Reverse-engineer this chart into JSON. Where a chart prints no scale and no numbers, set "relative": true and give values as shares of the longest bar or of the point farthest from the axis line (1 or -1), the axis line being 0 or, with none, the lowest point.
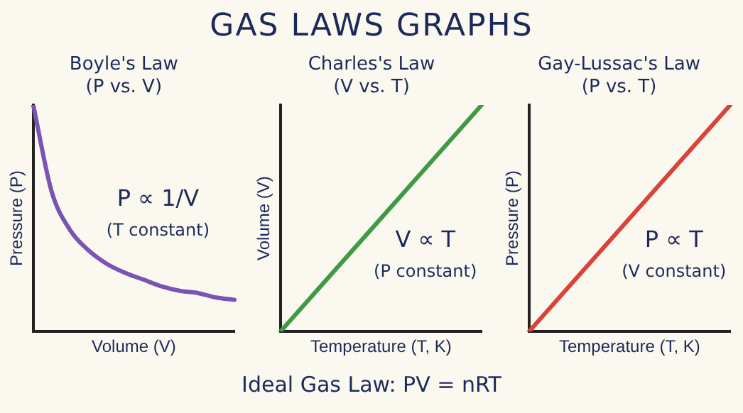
{
  "chart_data": [
    {
      "type": "other",
      "title": "GAS LAWS GRAPHS",
      "annotations": [
        "Ideal Gas Law:  PV = nRT"
      ]
    },
    {
      "type": "line",
      "title": "Boyle's Law",
      "subtitle": "(P vs. V)",
      "xlabel": "Volume (V)",
      "ylabel": "Pressure (P)",
      "relative": true,
      "grid": false,
      "tick_labels": false,
      "legend": false,
      "marker": "none",
      "categories": [
        null,
        null,
        null,
        null,
        null,
        null,
        null,
        null,
        null,
        null,
        null,
        null
      ],
      "series": [
        {
          "color": "#7b52b5",
          "values": [
            1.0,
            0.62,
            0.45,
            0.36,
            0.3,
            0.26,
            0.23,
            0.2,
            0.18,
            0.17,
            0.15,
            0.14
          ]
        }
      ],
      "annotations": [
        "P ∝ 1/V",
        "(T constant)"
      ]
    },
    {
      "type": "line",
      "title": "Charles's Law",
      "subtitle": "(V vs. T)",
      "xlabel": "Temperature (T, K)",
      "ylabel": "Volume (V)",
      "relative": true,
      "grid": false,
      "tick_labels": false,
      "legend": false,
      "marker": "none",
      "categories": [
        null,
        null
      ],
      "series": [
        {
          "color": "#3f9a45",
          "values": [
            0,
            1
          ]
        }
      ],
      "annotations": [
        "V ∝ T",
        "(P constant)"
      ]
    },
    {
      "type": "line",
      "title": "Gay-Lussac's Law",
      "subtitle": "(P vs. T)",
      "xlabel": "Temperature (T, K)",
      "ylabel": "Pressure (P)",
      "relative": true,
      "grid": false,
      "tick_labels": false,
      "legend": false,
      "marker": "none",
      "categories": [
        null,
        null
      ],
      "series": [
        {
          "color": "#d8433b",
          "values": [
            0,
            1
          ]
        }
      ],
      "annotations": [
        "P ∝ T",
        "(V constant)"
      ]
    }
  ]
}
